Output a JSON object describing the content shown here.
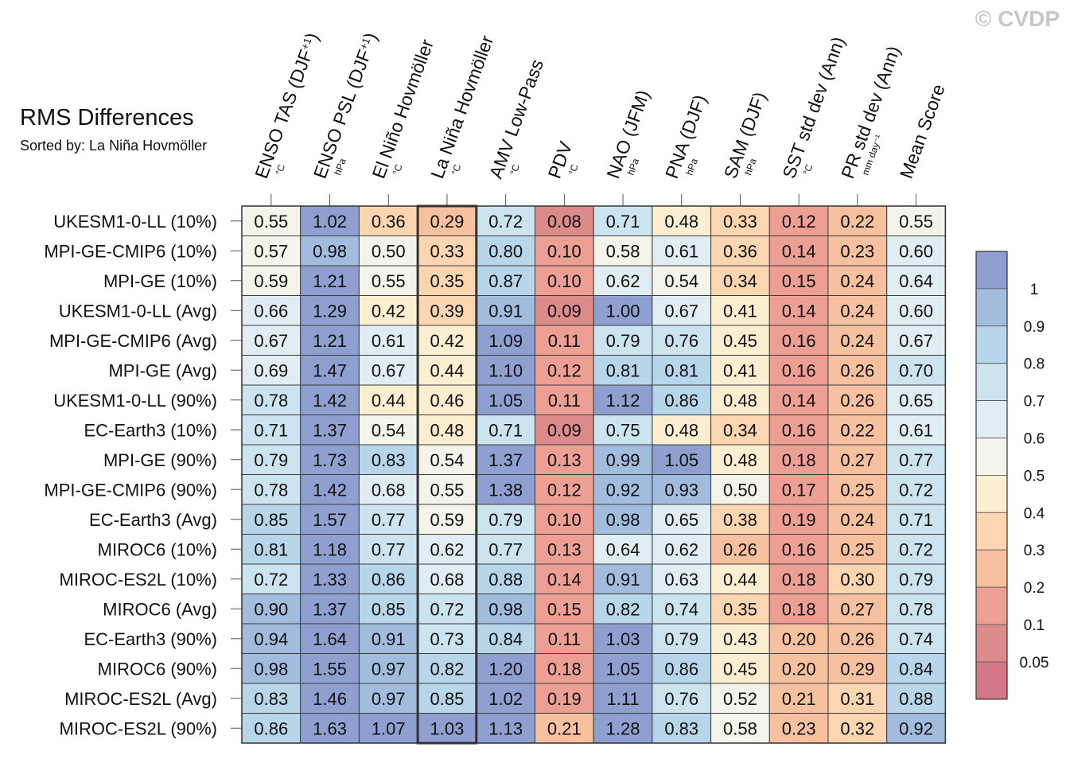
{
  "copyright": "© CVDP",
  "chart_data": {
    "type": "heatmap",
    "title": "RMS Differences",
    "subtitle": "Sorted by: La Niña Hovmöller",
    "highlight_column": 3,
    "columns": [
      {
        "label": "ENSO TAS (DJF",
        "sup": "+1",
        "close": ")",
        "unit": "°C"
      },
      {
        "label": "ENSO PSL (DJF",
        "sup": "+1",
        "close": ")",
        "unit": "hPa"
      },
      {
        "label": "El Niño Hovmöller",
        "sup": "",
        "close": "",
        "unit": "°C"
      },
      {
        "label": "La Niña Hovmöller",
        "sup": "",
        "close": "",
        "unit": "°C"
      },
      {
        "label": "AMV Low-Pass",
        "sup": "",
        "close": "",
        "unit": "°C"
      },
      {
        "label": "PDV",
        "sup": "",
        "close": "",
        "unit": "°C"
      },
      {
        "label": "NAO (JFM)",
        "sup": "",
        "close": "",
        "unit": "hPa"
      },
      {
        "label": "PNA (DJF)",
        "sup": "",
        "close": "",
        "unit": "hPa"
      },
      {
        "label": "SAM (DJF)",
        "sup": "",
        "close": "",
        "unit": "hPa"
      },
      {
        "label": "SST std dev (Ann)",
        "sup": "",
        "close": "",
        "unit": "°C"
      },
      {
        "label": "PR std dev (Ann)",
        "sup": "",
        "close": "",
        "unit": "mm day⁻¹"
      },
      {
        "label": "Mean Score",
        "sup": "",
        "close": "",
        "unit": ""
      }
    ],
    "rows": [
      {
        "label": "UKESM1-0-LL (10%)",
        "values": [
          0.55,
          1.02,
          0.36,
          0.29,
          0.72,
          0.08,
          0.71,
          0.48,
          0.33,
          0.12,
          0.22,
          0.55
        ]
      },
      {
        "label": "MPI-GE-CMIP6 (10%)",
        "values": [
          0.57,
          0.98,
          0.5,
          0.33,
          0.8,
          0.1,
          0.58,
          0.61,
          0.36,
          0.14,
          0.23,
          0.6
        ]
      },
      {
        "label": "MPI-GE (10%)",
        "values": [
          0.59,
          1.21,
          0.55,
          0.35,
          0.87,
          0.1,
          0.62,
          0.54,
          0.34,
          0.15,
          0.24,
          0.64
        ]
      },
      {
        "label": "UKESM1-0-LL (Avg)",
        "values": [
          0.66,
          1.29,
          0.42,
          0.39,
          0.91,
          0.09,
          1.0,
          0.67,
          0.41,
          0.14,
          0.24,
          0.6
        ]
      },
      {
        "label": "MPI-GE-CMIP6 (Avg)",
        "values": [
          0.67,
          1.21,
          0.61,
          0.42,
          1.09,
          0.11,
          0.79,
          0.76,
          0.45,
          0.16,
          0.24,
          0.67
        ]
      },
      {
        "label": "MPI-GE (Avg)",
        "values": [
          0.69,
          1.47,
          0.67,
          0.44,
          1.1,
          0.12,
          0.81,
          0.81,
          0.41,
          0.16,
          0.26,
          0.7
        ]
      },
      {
        "label": "UKESM1-0-LL (90%)",
        "values": [
          0.78,
          1.42,
          0.44,
          0.46,
          1.05,
          0.11,
          1.12,
          0.86,
          0.48,
          0.14,
          0.26,
          0.65
        ]
      },
      {
        "label": "EC-Earth3 (10%)",
        "values": [
          0.71,
          1.37,
          0.54,
          0.48,
          0.71,
          0.09,
          0.75,
          0.48,
          0.34,
          0.16,
          0.22,
          0.61
        ]
      },
      {
        "label": "MPI-GE (90%)",
        "values": [
          0.79,
          1.73,
          0.83,
          0.54,
          1.37,
          0.13,
          0.99,
          1.05,
          0.48,
          0.18,
          0.27,
          0.77
        ]
      },
      {
        "label": "MPI-GE-CMIP6 (90%)",
        "values": [
          0.78,
          1.42,
          0.68,
          0.55,
          1.38,
          0.12,
          0.92,
          0.93,
          0.5,
          0.17,
          0.25,
          0.72
        ]
      },
      {
        "label": "EC-Earth3 (Avg)",
        "values": [
          0.85,
          1.57,
          0.77,
          0.59,
          0.79,
          0.1,
          0.98,
          0.65,
          0.38,
          0.19,
          0.24,
          0.71
        ]
      },
      {
        "label": "MIROC6 (10%)",
        "values": [
          0.81,
          1.18,
          0.77,
          0.62,
          0.77,
          0.13,
          0.64,
          0.62,
          0.26,
          0.16,
          0.25,
          0.72
        ]
      },
      {
        "label": "MIROC-ES2L (10%)",
        "values": [
          0.72,
          1.33,
          0.86,
          0.68,
          0.88,
          0.14,
          0.91,
          0.63,
          0.44,
          0.18,
          0.3,
          0.79
        ]
      },
      {
        "label": "MIROC6 (Avg)",
        "values": [
          0.9,
          1.37,
          0.85,
          0.72,
          0.98,
          0.15,
          0.82,
          0.74,
          0.35,
          0.18,
          0.27,
          0.78
        ]
      },
      {
        "label": "EC-Earth3 (90%)",
        "values": [
          0.94,
          1.64,
          0.91,
          0.73,
          0.84,
          0.11,
          1.03,
          0.79,
          0.43,
          0.2,
          0.26,
          0.74
        ]
      },
      {
        "label": "MIROC6 (90%)",
        "values": [
          0.98,
          1.55,
          0.97,
          0.82,
          1.2,
          0.18,
          1.05,
          0.86,
          0.45,
          0.2,
          0.29,
          0.84
        ]
      },
      {
        "label": "MIROC-ES2L (Avg)",
        "values": [
          0.83,
          1.46,
          0.97,
          0.85,
          1.02,
          0.19,
          1.11,
          0.76,
          0.52,
          0.21,
          0.31,
          0.88
        ]
      },
      {
        "label": "MIROC-ES2L (90%)",
        "values": [
          0.86,
          1.63,
          1.07,
          1.03,
          1.13,
          0.21,
          1.28,
          0.83,
          0.58,
          0.23,
          0.32,
          0.92
        ]
      }
    ],
    "colorbar": {
      "labels": [
        "1",
        "0.9",
        "0.8",
        "0.7",
        "0.6",
        "0.5",
        "0.4",
        "0.3",
        "0.2",
        "0.1",
        "0.05"
      ],
      "bin_edges": [
        0.05,
        0.1,
        0.2,
        0.3,
        0.4,
        0.5,
        0.6,
        0.7,
        0.8,
        0.9,
        1
      ],
      "colors": [
        "#d47889",
        "#dc8a8a",
        "#ed9f94",
        "#f7c09f",
        "#fbd6b0",
        "#fceed0",
        "#f4f4ea",
        "#e0eef3",
        "#cce4ef",
        "#b8d6ea",
        "#a2bcdd",
        "#8fa0d0"
      ]
    }
  }
}
